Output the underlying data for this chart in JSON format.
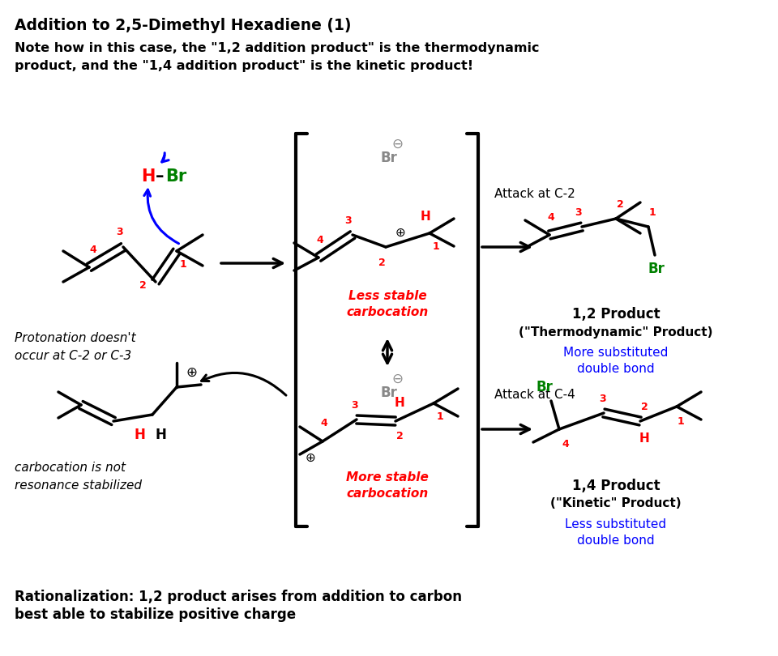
{
  "title": "Addition to 2,5-Dimethyl Hexadiene (1)",
  "note_line1": "Note how in this case, the \"1,2 addition product\" is the thermodynamic",
  "note_line2": "product, and the \"1,4 addition product\" is the kinetic product!",
  "footer_line1": "Rationalization: 1,2 product arises from addition to carbon",
  "footer_line2": "best able to stabilize positive charge",
  "bg_color": "#ffffff",
  "black": "#000000",
  "red": "#ff0000",
  "green": "#008000",
  "blue": "#0000ff",
  "gray": "#888888"
}
